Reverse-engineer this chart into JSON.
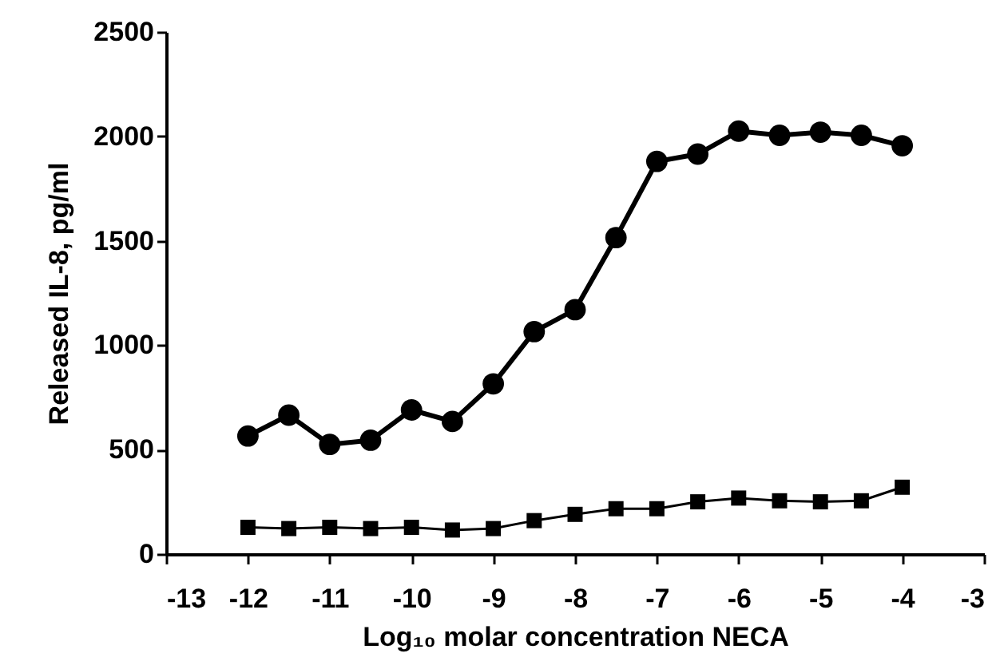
{
  "chart_data": {
    "type": "line",
    "xlabel": "Log₁₀ molar concentration NECA",
    "ylabel": "Released IL-8, pg/ml",
    "x": [
      -12,
      -11.5,
      -11,
      -10.5,
      -10,
      -9.5,
      -9,
      -8.5,
      -8,
      -7.5,
      -7,
      -6.5,
      -6,
      -5.5,
      -5,
      -4.5,
      -4
    ],
    "series": [
      {
        "color": "#000000",
        "marker": "circle",
        "values": [
          565,
          665,
          525,
          545,
          690,
          635,
          815,
          1065,
          1170,
          1515,
          1880,
          1915,
          2025,
          2005,
          2020,
          2005,
          1955
        ]
      },
      {
        "color": "#000000",
        "marker": "square",
        "values": [
          128,
          122,
          128,
          122,
          128,
          115,
          122,
          160,
          190,
          217,
          217,
          250,
          268,
          255,
          250,
          255,
          320
        ]
      }
    ],
    "xlim": [
      -13,
      -3
    ],
    "xticks": [
      -13,
      -12,
      -11,
      -10,
      -9,
      -8,
      -7,
      -6,
      -5,
      -4,
      -3
    ],
    "ylim": [
      0,
      2500
    ],
    "yticks": [
      0,
      500,
      1000,
      1500,
      2000,
      2500
    ],
    "grid": false,
    "line_style": "solid"
  }
}
